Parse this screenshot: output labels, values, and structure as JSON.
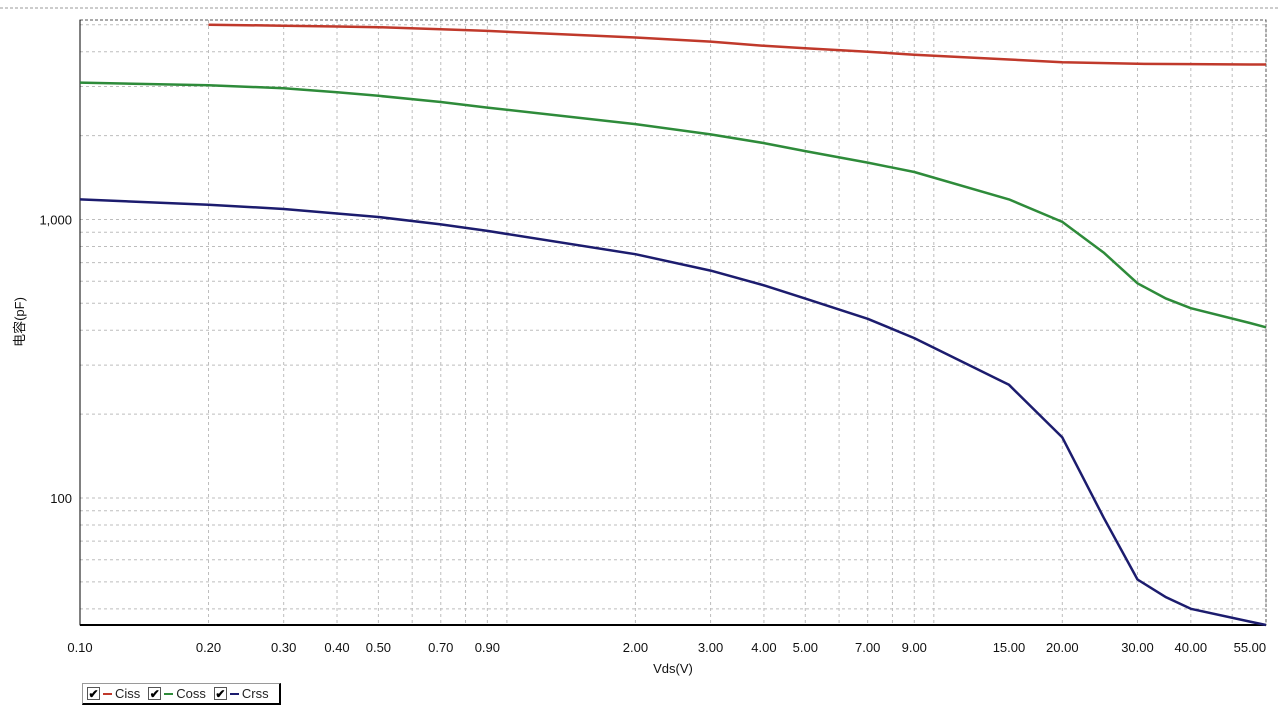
{
  "chart_data": {
    "type": "line",
    "title": "",
    "xlabel": "Vds(V)",
    "ylabel": "电容(pF)",
    "x_scale": "log",
    "y_scale": "log",
    "xlim": [
      0.1,
      60
    ],
    "ylim": [
      35,
      5200
    ],
    "grid": true,
    "legend_position": "bottom-left",
    "x_tick_labels": [
      {
        "v": 0.1,
        "label": "0.10"
      },
      {
        "v": 0.2,
        "label": "0.20"
      },
      {
        "v": 0.3,
        "label": "0.30"
      },
      {
        "v": 0.4,
        "label": "0.40"
      },
      {
        "v": 0.5,
        "label": "0.50"
      },
      {
        "v": 0.7,
        "label": "0.70"
      },
      {
        "v": 0.9,
        "label": "0.90"
      },
      {
        "v": 2,
        "label": "2.00"
      },
      {
        "v": 3,
        "label": "3.00"
      },
      {
        "v": 4,
        "label": "4.00"
      },
      {
        "v": 5,
        "label": "5.00"
      },
      {
        "v": 7,
        "label": "7.00"
      },
      {
        "v": 9,
        "label": "9.00"
      },
      {
        "v": 15,
        "label": "15.00"
      },
      {
        "v": 20,
        "label": "20.00"
      },
      {
        "v": 30,
        "label": "30.00"
      },
      {
        "v": 40,
        "label": "40.00"
      },
      {
        "v": 55,
        "label": "55.00"
      }
    ],
    "y_tick_labels": [
      {
        "v": 1000,
        "label": "1,000"
      },
      {
        "v": 100,
        "label": "100"
      }
    ],
    "series": [
      {
        "name": "Ciss",
        "color": "#c0392b",
        "points": [
          [
            0.2,
            5000
          ],
          [
            0.3,
            4960
          ],
          [
            0.4,
            4930
          ],
          [
            0.5,
            4900
          ],
          [
            0.7,
            4820
          ],
          [
            0.9,
            4750
          ],
          [
            2,
            4500
          ],
          [
            3,
            4350
          ],
          [
            4,
            4200
          ],
          [
            5,
            4120
          ],
          [
            7,
            4000
          ],
          [
            9,
            3900
          ],
          [
            15,
            3750
          ],
          [
            20,
            3670
          ],
          [
            30,
            3620
          ],
          [
            40,
            3610
          ],
          [
            55,
            3600
          ],
          [
            60,
            3600
          ]
        ]
      },
      {
        "name": "Coss",
        "color": "#2e8b3a",
        "points": [
          [
            0.1,
            3100
          ],
          [
            0.2,
            3030
          ],
          [
            0.3,
            2960
          ],
          [
            0.4,
            2860
          ],
          [
            0.5,
            2780
          ],
          [
            0.7,
            2640
          ],
          [
            0.9,
            2520
          ],
          [
            2,
            2200
          ],
          [
            3,
            2020
          ],
          [
            4,
            1880
          ],
          [
            5,
            1760
          ],
          [
            7,
            1600
          ],
          [
            9,
            1480
          ],
          [
            15,
            1180
          ],
          [
            20,
            980
          ],
          [
            25,
            760
          ],
          [
            30,
            590
          ],
          [
            35,
            520
          ],
          [
            40,
            480
          ],
          [
            55,
            425
          ],
          [
            60,
            410
          ]
        ]
      },
      {
        "name": "Crss",
        "color": "#1c1c6e",
        "points": [
          [
            0.1,
            1180
          ],
          [
            0.2,
            1130
          ],
          [
            0.3,
            1090
          ],
          [
            0.4,
            1050
          ],
          [
            0.5,
            1020
          ],
          [
            0.7,
            960
          ],
          [
            0.9,
            910
          ],
          [
            2,
            750
          ],
          [
            3,
            655
          ],
          [
            4,
            580
          ],
          [
            5,
            520
          ],
          [
            7,
            440
          ],
          [
            9,
            375
          ],
          [
            15,
            255
          ],
          [
            20,
            165
          ],
          [
            25,
            85
          ],
          [
            30,
            51
          ],
          [
            35,
            44
          ],
          [
            40,
            40
          ],
          [
            55,
            36
          ],
          [
            60,
            35
          ]
        ]
      }
    ]
  },
  "legend": {
    "check_glyph": "✔",
    "items": [
      {
        "label": "Ciss",
        "color": "#c0392b"
      },
      {
        "label": "Coss",
        "color": "#2e8b3a"
      },
      {
        "label": "Crss",
        "color": "#1c1c6e"
      }
    ]
  }
}
